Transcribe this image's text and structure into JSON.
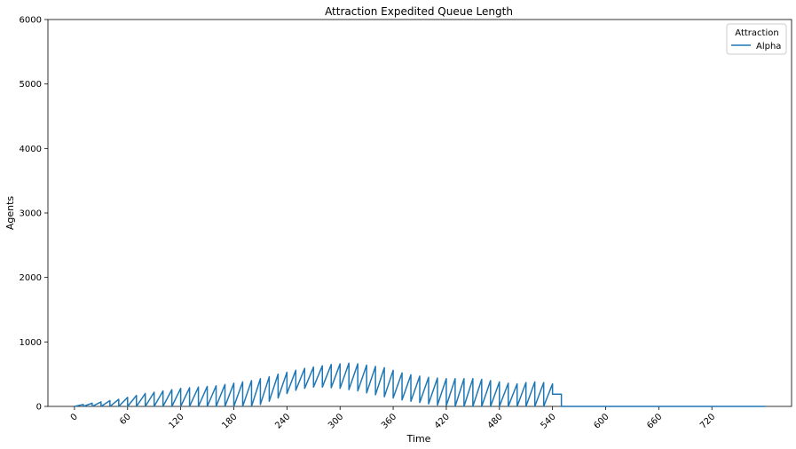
{
  "chart_data": {
    "type": "line",
    "title": "Attraction Expedited Queue Length",
    "xlabel": "Time",
    "ylabel": "Agents",
    "xlim": [
      -30,
      810
    ],
    "ylim": [
      0,
      6000
    ],
    "xticks": [
      0,
      60,
      120,
      180,
      240,
      300,
      360,
      420,
      480,
      540,
      600,
      660,
      720
    ],
    "yticks": [
      0,
      1000,
      2000,
      3000,
      4000,
      5000,
      6000
    ],
    "grid": false,
    "legend": {
      "title": "Attraction",
      "placement": "top-right"
    },
    "series": [
      {
        "name": "Alpha",
        "color": "#1f77b4",
        "cycle_minutes": 10,
        "cycle_peaks": [
          30,
          50,
          70,
          90,
          110,
          140,
          170,
          200,
          220,
          240,
          260,
          280,
          290,
          300,
          310,
          320,
          340,
          360,
          380,
          400,
          430,
          460,
          500,
          530,
          560,
          590,
          610,
          630,
          650,
          660,
          670,
          660,
          640,
          620,
          600,
          560,
          520,
          490,
          470,
          450,
          440,
          430,
          430,
          430,
          430,
          420,
          400,
          380,
          360,
          350,
          370,
          380,
          370,
          350,
          190
        ],
        "cycle_troughs": [
          0,
          0,
          0,
          0,
          0,
          0,
          0,
          0,
          0,
          0,
          0,
          0,
          0,
          0,
          0,
          0,
          0,
          0,
          0,
          0,
          0,
          30,
          80,
          130,
          200,
          250,
          280,
          300,
          300,
          290,
          280,
          260,
          240,
          210,
          180,
          150,
          130,
          100,
          80,
          60,
          40,
          20,
          10,
          0,
          0,
          0,
          0,
          0,
          0,
          0,
          0,
          0,
          0,
          0,
          190
        ],
        "x_end_active": 550,
        "x_end": 780,
        "tail_value": 0
      }
    ]
  }
}
